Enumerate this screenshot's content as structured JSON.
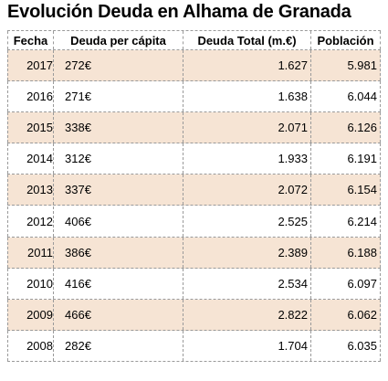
{
  "title": "Evolución Deuda en Alhama de Granada",
  "table": {
    "header": [
      "Fecha",
      "Deuda per cápita",
      "Deuda Total (m.€)",
      "Población"
    ],
    "rows": [
      [
        "2017",
        "272€",
        "1.627",
        "5.981"
      ],
      [
        "2016",
        "271€",
        "1.638",
        "6.044"
      ],
      [
        "2015",
        "338€",
        "2.071",
        "6.126"
      ],
      [
        "2014",
        "312€",
        "1.933",
        "6.191"
      ],
      [
        "2013",
        "337€",
        "2.072",
        "6.154"
      ],
      [
        "2012",
        "406€",
        "2.525",
        "6.214"
      ],
      [
        "2011",
        "386€",
        "2.389",
        "6.188"
      ],
      [
        "2010",
        "416€",
        "2.534",
        "6.097"
      ],
      [
        "2009",
        "466€",
        "2.822",
        "6.062"
      ],
      [
        "2008",
        "282€",
        "1.704",
        "6.035"
      ]
    ]
  }
}
